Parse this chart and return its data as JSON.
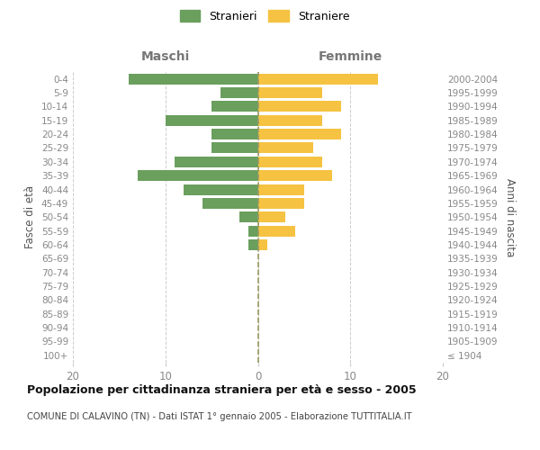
{
  "age_groups": [
    "100+",
    "95-99",
    "90-94",
    "85-89",
    "80-84",
    "75-79",
    "70-74",
    "65-69",
    "60-64",
    "55-59",
    "50-54",
    "45-49",
    "40-44",
    "35-39",
    "30-34",
    "25-29",
    "20-24",
    "15-19",
    "10-14",
    "5-9",
    "0-4"
  ],
  "birth_years": [
    "≤ 1904",
    "1905-1909",
    "1910-1914",
    "1915-1919",
    "1920-1924",
    "1925-1929",
    "1930-1934",
    "1935-1939",
    "1940-1944",
    "1945-1949",
    "1950-1954",
    "1955-1959",
    "1960-1964",
    "1965-1969",
    "1970-1974",
    "1975-1979",
    "1980-1984",
    "1985-1989",
    "1990-1994",
    "1995-1999",
    "2000-2004"
  ],
  "maschi": [
    0,
    0,
    0,
    0,
    0,
    0,
    0,
    0,
    1,
    1,
    2,
    6,
    8,
    13,
    9,
    5,
    5,
    10,
    5,
    4,
    14
  ],
  "femmine": [
    0,
    0,
    0,
    0,
    0,
    0,
    0,
    0,
    1,
    4,
    3,
    5,
    5,
    8,
    7,
    6,
    9,
    7,
    9,
    7,
    13
  ],
  "maschi_color": "#6a9f5e",
  "femmine_color": "#f5c242",
  "title": "Popolazione per cittadinanza straniera per età e sesso - 2005",
  "subtitle": "COMUNE DI CALAVINO (TN) - Dati ISTAT 1° gennaio 2005 - Elaborazione TUTTITALIA.IT",
  "ylabel_left": "Fasce di età",
  "ylabel_right": "Anni di nascita",
  "xlabel_left": "Maschi",
  "xlabel_right": "Femmine",
  "legend_maschi": "Stranieri",
  "legend_femmine": "Straniere",
  "xlim": 20,
  "bg_color": "#ffffff",
  "grid_color": "#cccccc",
  "axis_label_color": "#555555",
  "tick_color": "#888888",
  "maschi_header_color": "#777777",
  "femmine_header_color": "#777777"
}
